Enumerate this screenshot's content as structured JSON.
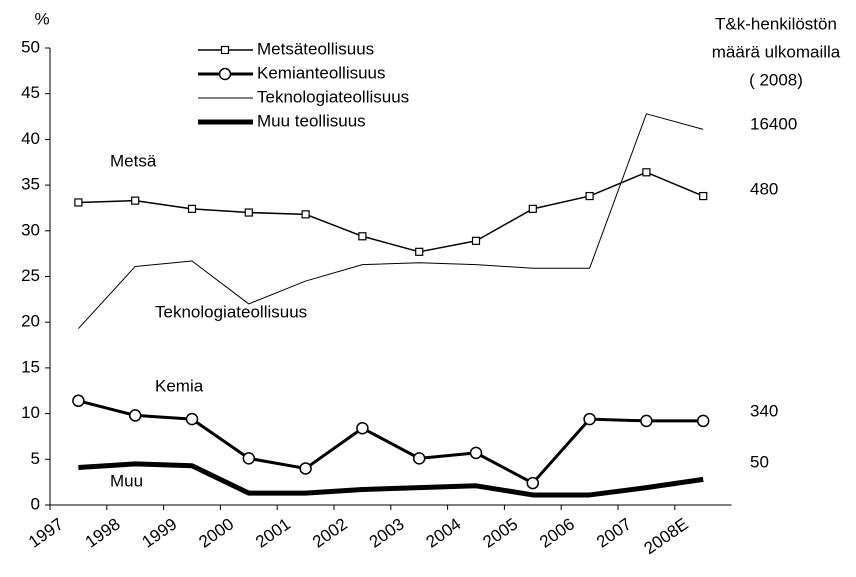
{
  "chart_data": {
    "type": "line",
    "y_axis_label": "%",
    "categories": [
      "1997",
      "1998",
      "1999",
      "2000",
      "2001",
      "2002",
      "2003",
      "2004",
      "2005",
      "2006",
      "2007",
      "2008E"
    ],
    "series": [
      {
        "name": "Metsäteollisuus",
        "color": "#000000",
        "line_width": 1.5,
        "marker": "square",
        "values": [
          33.1,
          33.3,
          32.4,
          32.0,
          31.8,
          29.4,
          27.7,
          28.9,
          32.4,
          33.8,
          36.4,
          33.8
        ]
      },
      {
        "name": "Kemianteollisuus",
        "color": "#000000",
        "line_width": 3,
        "marker": "circle",
        "values": [
          11.4,
          9.8,
          9.4,
          5.1,
          4.0,
          8.4,
          5.1,
          5.7,
          2.4,
          9.4,
          9.2,
          9.2
        ]
      },
      {
        "name": "Teknologiateollisuus",
        "color": "#000000",
        "line_width": 1,
        "marker": null,
        "values": [
          19.3,
          26.1,
          26.7,
          22.0,
          24.5,
          26.3,
          26.5,
          26.3,
          25.9,
          25.9,
          42.8,
          41.1
        ]
      },
      {
        "name": "Muu teollisuus",
        "color": "#000000",
        "line_width": 5,
        "marker": null,
        "values": [
          4.1,
          4.5,
          4.3,
          1.3,
          1.3,
          1.7,
          1.9,
          2.1,
          1.1,
          1.1,
          1.9,
          2.8
        ]
      }
    ],
    "ylim": [
      0,
      50
    ],
    "yticks": [
      0,
      5,
      10,
      15,
      20,
      25,
      30,
      35,
      40,
      45,
      50
    ],
    "annotations": [
      "Metsä",
      "Teknologiateollisuus",
      "Kemia",
      "Muu"
    ],
    "side_title": [
      "T&k-henkilöstön",
      "määrä ulkomailla",
      "( 2008)"
    ],
    "side_values": [
      16400,
      480,
      340,
      50
    ]
  }
}
